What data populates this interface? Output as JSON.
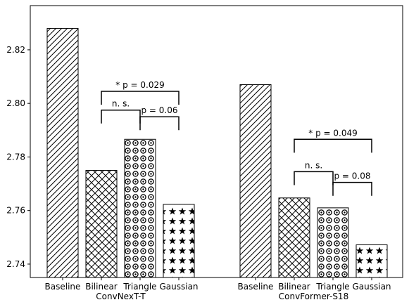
{
  "chart_data": {
    "type": "bar",
    "ylim": [
      2.735,
      2.8365
    ],
    "yticks": [
      2.74,
      2.76,
      2.78,
      2.8,
      2.82
    ],
    "ytick_labels": [
      "2.74",
      "2.76",
      "2.78",
      "2.80",
      "2.82"
    ],
    "grid": false,
    "legend": "none",
    "categories": [
      "Baseline",
      "Bilinear",
      "Triangle",
      "Gaussian"
    ],
    "groups": [
      {
        "name": "ConvNexT-T",
        "values": [
          2.828,
          2.775,
          2.7866,
          2.7623
        ],
        "annotations": [
          {
            "label": "* p = 0.029",
            "from": 1,
            "to": 3,
            "y": 2.8045,
            "height": 0.005
          },
          {
            "label": "n. s.",
            "from": 1,
            "to": 2,
            "y": 2.7975,
            "height": 0.005
          },
          {
            "label": "p = 0.06",
            "from": 2,
            "to": 3,
            "y": 2.795,
            "height": 0.005
          }
        ]
      },
      {
        "name": "ConvFormer-S18",
        "values": [
          2.807,
          2.7647,
          2.761,
          2.7472
        ],
        "annotations": [
          {
            "label": "* p = 0.049",
            "from": 1,
            "to": 3,
            "y": 2.7866,
            "height": 0.005
          },
          {
            "label": "n. s.",
            "from": 1,
            "to": 2,
            "y": 2.7745,
            "height": 0.005
          },
          {
            "label": "p = 0.08",
            "from": 2,
            "to": 3,
            "y": 2.7705,
            "height": 0.005
          }
        ]
      }
    ],
    "patterns": [
      "diagonal-hatch",
      "cross-hatch",
      "ring-dots",
      "stars"
    ]
  }
}
